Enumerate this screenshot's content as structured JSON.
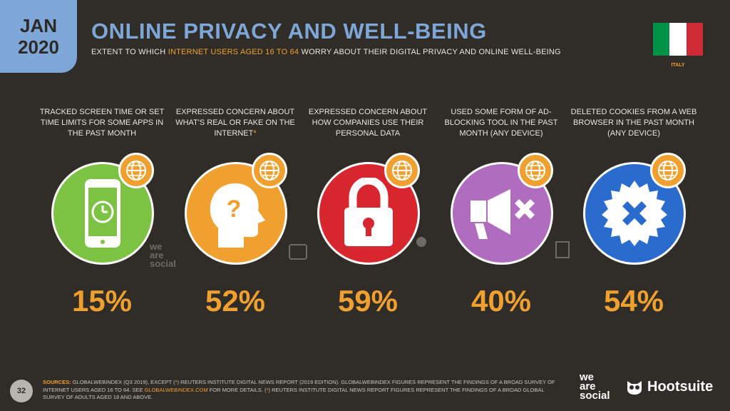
{
  "badge": {
    "month": "JAN",
    "year": "2020"
  },
  "header": {
    "title": "ONLINE PRIVACY AND WELL-BEING",
    "subtitle_pre": "EXTENT TO WHICH",
    "subtitle_highlight": "INTERNET USERS AGED 16 TO 64",
    "subtitle_post": "WORRY ABOUT THEIR DIGITAL PRIVACY AND ONLINE WELL-BEING"
  },
  "country": {
    "label": "ITALY",
    "flag_colors": [
      "#009246",
      "#ffffff",
      "#ce2b37"
    ]
  },
  "stats": [
    {
      "label": "TRACKED SCREEN TIME OR SET TIME LIMITS FOR SOME APPS IN THE PAST MONTH",
      "asterisk": "",
      "value": "15%",
      "color": "#7cc243",
      "icon": "smartphone-clock-icon"
    },
    {
      "label": "EXPRESSED CONCERN ABOUT WHAT'S REAL OR FAKE ON THE INTERNET",
      "asterisk": "*",
      "value": "52%",
      "color": "#f0a02e",
      "icon": "head-question-icon"
    },
    {
      "label": "EXPRESSED CONCERN ABOUT HOW COMPANIES USE THEIR PERSONAL DATA",
      "asterisk": "",
      "value": "59%",
      "color": "#d7262e",
      "icon": "padlock-icon"
    },
    {
      "label": "USED SOME FORM OF AD-BLOCKING TOOL IN THE PAST MONTH (ANY DEVICE)",
      "asterisk": "",
      "value": "40%",
      "color": "#b06cbe",
      "icon": "ad-block-megaphone-icon"
    },
    {
      "label": "DELETED COOKIES FROM A WEB BROWSER IN THE PAST MONTH (ANY DEVICE)",
      "asterisk": "",
      "value": "54%",
      "color": "#2a6ccd",
      "icon": "cookie-x-icon"
    }
  ],
  "footer": {
    "page": "32",
    "sources_label": "SOURCES:",
    "sources_p1": "GLOBALWEBINDEX (Q3 2019), EXCEPT (",
    "sources_ast1": "*",
    "sources_p2": ") REUTERS INSTITUTE DIGITAL NEWS REPORT (2019 EDITION). GLOBALWEBINDEX FIGURES REPRESENT THE FINDINGS OF A BROAD SURVEY OF INTERNET USERS AGED 16 TO 64. SEE",
    "sources_link": "GLOBALWEBINDEX.COM",
    "sources_p3": "FOR MORE DETAILS. (",
    "sources_ast2": "*",
    "sources_p4": ") REUTERS INSTITUTE DIGITAL NEWS REPORT FIGURES REPRESENT THE FINDINGS OF A BROAD GLOBAL SURVEY OF ADULTS AGED 18 AND ABOVE."
  },
  "logos": {
    "we": "we",
    "are": "are",
    "social": "social",
    "hootsuite": "Hootsuite"
  }
}
